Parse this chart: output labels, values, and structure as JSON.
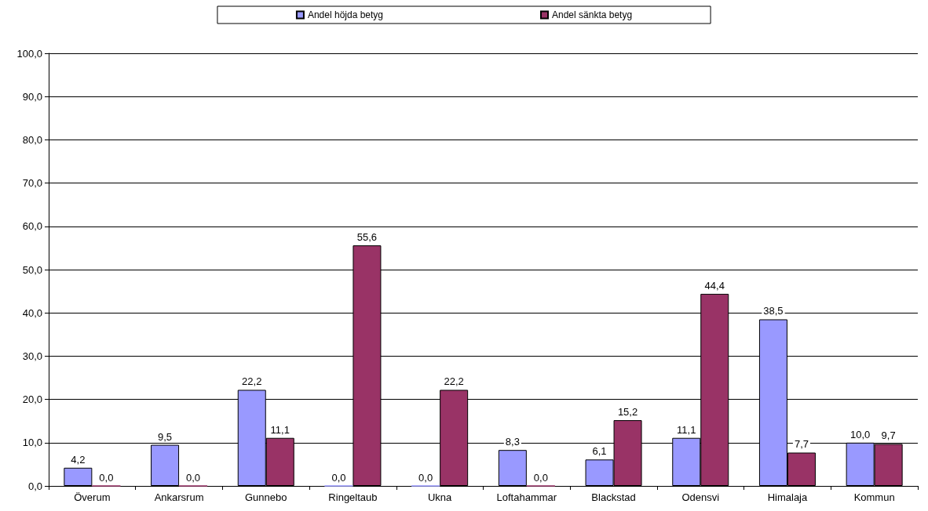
{
  "chart_data": {
    "type": "bar",
    "categories": [
      "Överum",
      "Ankarsrum",
      "Gunnebo",
      "Ringeltaub",
      "Ukna",
      "Loftahammar",
      "Blackstad",
      "Odensvi",
      "Himalaja",
      "Kommun"
    ],
    "series": [
      {
        "name": "Andel höjda betyg",
        "color": "#9999ff",
        "values": [
          4.2,
          9.5,
          22.2,
          0.0,
          0.0,
          8.3,
          6.1,
          11.1,
          38.5,
          10.0
        ],
        "value_labels": [
          "4,2",
          "9,5",
          "22,2",
          "0,0",
          "0,0",
          "8,3",
          "6,1",
          "11,1",
          "38,5",
          "10,0"
        ]
      },
      {
        "name": "Andel sänkta betyg",
        "color": "#993366",
        "values": [
          0.0,
          0.0,
          11.1,
          55.6,
          22.2,
          0.0,
          15.2,
          44.4,
          7.7,
          9.7
        ],
        "value_labels": [
          "0,0",
          "0,0",
          "11,1",
          "55,6",
          "22,2",
          "0,0",
          "15,2",
          "44,4",
          "7,7",
          "9,7"
        ]
      }
    ],
    "ylim": [
      0,
      100
    ],
    "yticks": [
      {
        "value": 0,
        "label": "0,0"
      },
      {
        "value": 10,
        "label": "10,0"
      },
      {
        "value": 20,
        "label": "20,0"
      },
      {
        "value": 30,
        "label": "30,0"
      },
      {
        "value": 40,
        "label": "40,0"
      },
      {
        "value": 50,
        "label": "50,0"
      },
      {
        "value": 60,
        "label": "60,0"
      },
      {
        "value": 70,
        "label": "70,0"
      },
      {
        "value": 80,
        "label": "80,0"
      },
      {
        "value": 90,
        "label": "90,0"
      },
      {
        "value": 100,
        "label": "100,0"
      }
    ],
    "grid": "y",
    "legend": "top"
  }
}
